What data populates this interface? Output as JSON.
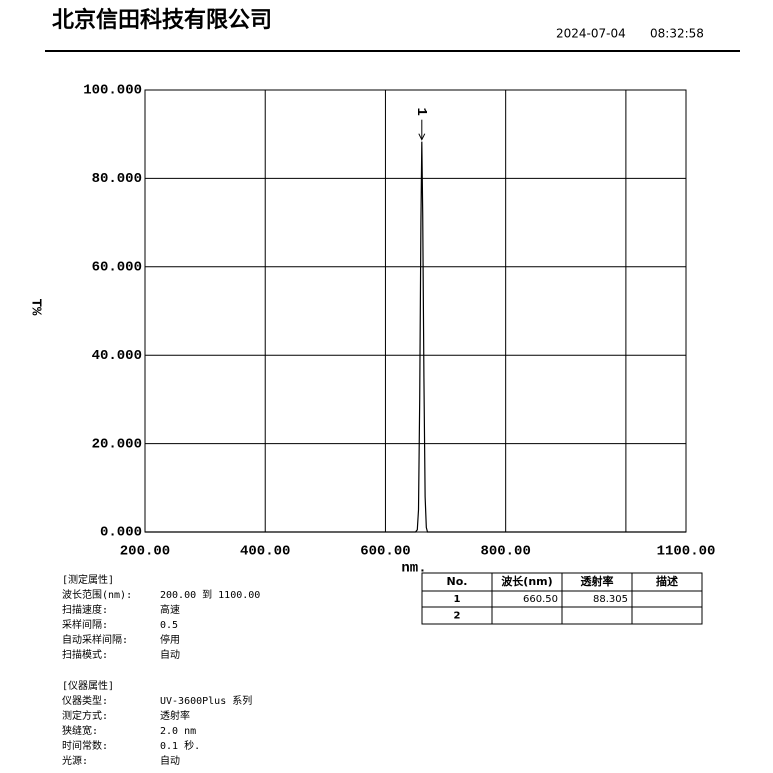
{
  "header": {
    "title": "北京信田科技有限公司",
    "date": "2024-07-04",
    "time": "08:32:58"
  },
  "chart_data": {
    "type": "line",
    "x_label": "nm.",
    "y_label": "T%",
    "x": [
      200,
      650,
      653,
      655,
      657,
      659,
      660.5,
      662,
      664,
      666,
      668,
      670,
      1100
    ],
    "series": [
      {
        "name": null,
        "color": "#000000",
        "values": [
          0,
          0,
          0.5,
          5,
          30,
          70,
          88.305,
          72,
          35,
          8,
          1,
          0,
          0
        ]
      }
    ],
    "xlim": [
      200,
      1100
    ],
    "ylim": [
      0,
      100
    ],
    "xticks": [
      {
        "value": 200,
        "label": "200.00"
      },
      {
        "value": 400,
        "label": "400.00"
      },
      {
        "value": 600,
        "label": "600.00"
      },
      {
        "value": 800,
        "label": "800.00"
      },
      {
        "value": 1000,
        "label": null
      },
      {
        "value": 1100,
        "label": "1100.00"
      }
    ],
    "yticks": [
      {
        "value": 0,
        "label": "0.000"
      },
      {
        "value": 20,
        "label": "20.000"
      },
      {
        "value": 40,
        "label": "40.000"
      },
      {
        "value": 60,
        "label": "60.000"
      },
      {
        "value": 80,
        "label": "80.000"
      },
      {
        "value": 100,
        "label": "100.000"
      }
    ],
    "grid": true,
    "annotations": [
      {
        "text": "1",
        "x": 660.5,
        "y": 88.305
      }
    ]
  },
  "table": {
    "header": [
      "No.",
      "波长(nm)",
      "透射率",
      "描述"
    ],
    "rows": [
      [
        "1",
        "660.50",
        "88.305",
        null
      ],
      [
        "2",
        null,
        null,
        null
      ]
    ]
  },
  "params": [
    {
      "title": "[测定属性]",
      "items": [
        [
          "波长范围(nm):",
          "200.00 到 1100.00"
        ],
        [
          "扫描速度:",
          "高速"
        ],
        [
          "采样间隔:",
          "0.5"
        ],
        [
          "自动采样间隔:",
          "停用"
        ],
        [
          "扫描模式:",
          "自动"
        ]
      ]
    },
    {
      "title": "[仪器属性]",
      "items": [
        [
          "仪器类型:",
          "UV-3600Plus 系列"
        ],
        [
          "测定方式:",
          "透射率"
        ],
        [
          "狭缝宽:",
          "2.0 nm"
        ],
        [
          "时间常数:",
          "0.1 秒."
        ],
        [
          "光源:",
          "自动"
        ]
      ]
    }
  ]
}
